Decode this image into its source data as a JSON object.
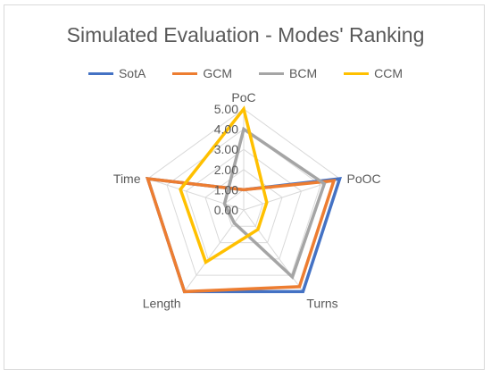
{
  "chart_data": {
    "type": "radar",
    "title": "Simulated Evaluation - Modes' Ranking",
    "axes": [
      "PoC",
      "PoOC",
      "Turns",
      "Length",
      "Time"
    ],
    "ticks": [
      "0.00",
      "1.00",
      "2.00",
      "3.00",
      "4.00",
      "5.00"
    ],
    "rlim": [
      0,
      5
    ],
    "grid": true,
    "legend_position": "top",
    "series": [
      {
        "name": "SotA",
        "color": "#4472C4",
        "values": [
          1.0,
          5.0,
          5.0,
          5.0,
          5.0
        ]
      },
      {
        "name": "GCM",
        "color": "#ED7D31",
        "values": [
          1.0,
          4.7,
          4.7,
          5.0,
          5.0
        ]
      },
      {
        "name": "BCM",
        "color": "#A5A5A5",
        "values": [
          4.0,
          4.2,
          4.1,
          0.8,
          1.0
        ]
      },
      {
        "name": "CCM",
        "color": "#FFC000",
        "values": [
          5.0,
          1.2,
          1.2,
          3.2,
          3.3
        ]
      }
    ]
  }
}
